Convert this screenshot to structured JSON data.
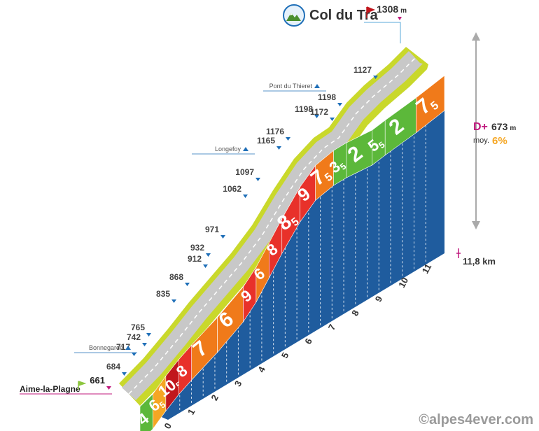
{
  "chart_data": {
    "type": "area",
    "title": "Col du Tra",
    "summit_altitude": 1308,
    "summit_unit": "m",
    "start_name": "Aime-la-Plagne",
    "start_altitude": 661,
    "distance_label": "11,8 km",
    "d_plus_label": "D+",
    "d_plus_value": "673",
    "d_plus_unit": "m",
    "avg_label": "moy.",
    "avg_value": "6%",
    "copyright": "©alpes4ever.com",
    "x_ticks": [
      "0",
      "1",
      "2",
      "3",
      "4",
      "5",
      "6",
      "7",
      "8",
      "9",
      "10",
      "11"
    ],
    "segments": [
      {
        "km_start": 0.0,
        "km_end": 0.5,
        "gradient": "4",
        "color": "#5cb83a"
      },
      {
        "km_start": 0.5,
        "km_end": 1.0,
        "gradient": "6,5",
        "color": "#f5a623"
      },
      {
        "km_start": 1.0,
        "km_end": 1.5,
        "gradient": "10,5",
        "color": "#c1171d"
      },
      {
        "km_start": 1.5,
        "km_end": 2.0,
        "gradient": "8",
        "color": "#e8312a"
      },
      {
        "km_start": 2.0,
        "km_end": 3.0,
        "gradient": "7",
        "color": "#f07a1a"
      },
      {
        "km_start": 3.0,
        "km_end": 4.0,
        "gradient": "6",
        "color": "#f07a1a"
      },
      {
        "km_start": 4.0,
        "km_end": 4.5,
        "gradient": "9",
        "color": "#e8312a"
      },
      {
        "km_start": 4.5,
        "km_end": 5.0,
        "gradient": "6",
        "color": "#f07a1a"
      },
      {
        "km_start": 5.0,
        "km_end": 5.5,
        "gradient": "8",
        "color": "#e8312a"
      },
      {
        "km_start": 5.5,
        "km_end": 6.2,
        "gradient": "8,5",
        "color": "#e8312a"
      },
      {
        "km_start": 6.2,
        "km_end": 6.8,
        "gradient": "9",
        "color": "#e8312a"
      },
      {
        "km_start": 6.8,
        "km_end": 7.5,
        "gradient": "7,5",
        "color": "#f07a1a"
      },
      {
        "km_start": 7.5,
        "km_end": 8.0,
        "gradient": "3,5",
        "color": "#5cb83a"
      },
      {
        "km_start": 8.0,
        "km_end": 9.0,
        "gradient": "2",
        "color": "#5cb83a"
      },
      {
        "km_start": 9.0,
        "km_end": 9.5,
        "gradient": "5,5",
        "color": "#5cb83a"
      },
      {
        "km_start": 9.5,
        "km_end": 10.7,
        "gradient": "2",
        "color": "#5cb83a"
      },
      {
        "km_start": 10.7,
        "km_end": 11.8,
        "gradient": "7,5",
        "color": "#f07a1a"
      }
    ],
    "altitudes": [
      {
        "value": "661"
      },
      {
        "value": "684"
      },
      {
        "value": "717"
      },
      {
        "value": "742"
      },
      {
        "value": "765"
      },
      {
        "value": "835"
      },
      {
        "value": "868"
      },
      {
        "value": "912"
      },
      {
        "value": "932"
      },
      {
        "value": "971"
      },
      {
        "value": "1062"
      },
      {
        "value": "1097"
      },
      {
        "value": "1165"
      },
      {
        "value": "1176"
      },
      {
        "value": "1198"
      },
      {
        "value": "1172"
      },
      {
        "value": "1198"
      },
      {
        "value": "1127"
      }
    ],
    "places": [
      {
        "name": "Bonnegarde"
      },
      {
        "name": "Longefoy"
      },
      {
        "name": "Pont du Thieret"
      }
    ]
  }
}
